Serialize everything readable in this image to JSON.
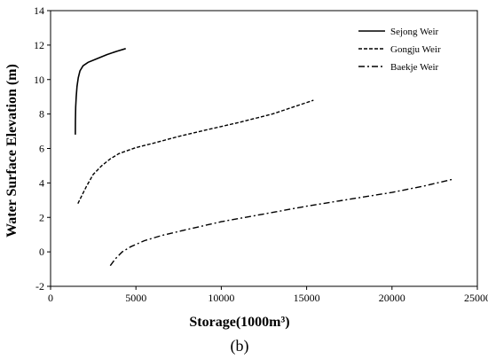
{
  "chart_data": {
    "type": "line",
    "title": "",
    "xlabel": "Storage(1000m³)",
    "ylabel": "Water Surface Elevation (m)",
    "panel_label": "(b)",
    "xlim": [
      0,
      25000
    ],
    "ylim": [
      -2,
      14
    ],
    "x_ticks": [
      0,
      5000,
      10000,
      15000,
      20000,
      25000
    ],
    "y_ticks": [
      -2,
      0,
      2,
      4,
      6,
      8,
      10,
      12,
      14
    ],
    "grid": false,
    "legend_position": "top-right",
    "series": [
      {
        "name": "Sejong Weir",
        "dash": "solid",
        "points": [
          [
            1450,
            6.8
          ],
          [
            1455,
            7.6
          ],
          [
            1470,
            8.4
          ],
          [
            1500,
            9.0
          ],
          [
            1550,
            9.6
          ],
          [
            1620,
            10.1
          ],
          [
            1720,
            10.5
          ],
          [
            1900,
            10.8
          ],
          [
            2200,
            11.0
          ],
          [
            2700,
            11.2
          ],
          [
            3300,
            11.45
          ],
          [
            3900,
            11.65
          ],
          [
            4400,
            11.8
          ]
        ]
      },
      {
        "name": "Gongju Weir",
        "dash": "dashed",
        "points": [
          [
            1600,
            2.8
          ],
          [
            1800,
            3.2
          ],
          [
            2100,
            3.8
          ],
          [
            2500,
            4.5
          ],
          [
            3000,
            5.0
          ],
          [
            3500,
            5.4
          ],
          [
            4000,
            5.7
          ],
          [
            5000,
            6.05
          ],
          [
            6000,
            6.3
          ],
          [
            7500,
            6.7
          ],
          [
            9000,
            7.05
          ],
          [
            11000,
            7.5
          ],
          [
            13000,
            8.0
          ],
          [
            15400,
            8.8
          ]
        ]
      },
      {
        "name": "Baekje Weir",
        "dash": "dashdot",
        "points": [
          [
            3500,
            -0.8
          ],
          [
            3800,
            -0.4
          ],
          [
            4200,
            0.0
          ],
          [
            4700,
            0.3
          ],
          [
            5500,
            0.65
          ],
          [
            6500,
            0.95
          ],
          [
            8000,
            1.3
          ],
          [
            10000,
            1.75
          ],
          [
            12500,
            2.2
          ],
          [
            15000,
            2.65
          ],
          [
            17500,
            3.05
          ],
          [
            20000,
            3.45
          ],
          [
            22000,
            3.85
          ],
          [
            23500,
            4.2
          ]
        ]
      }
    ]
  }
}
